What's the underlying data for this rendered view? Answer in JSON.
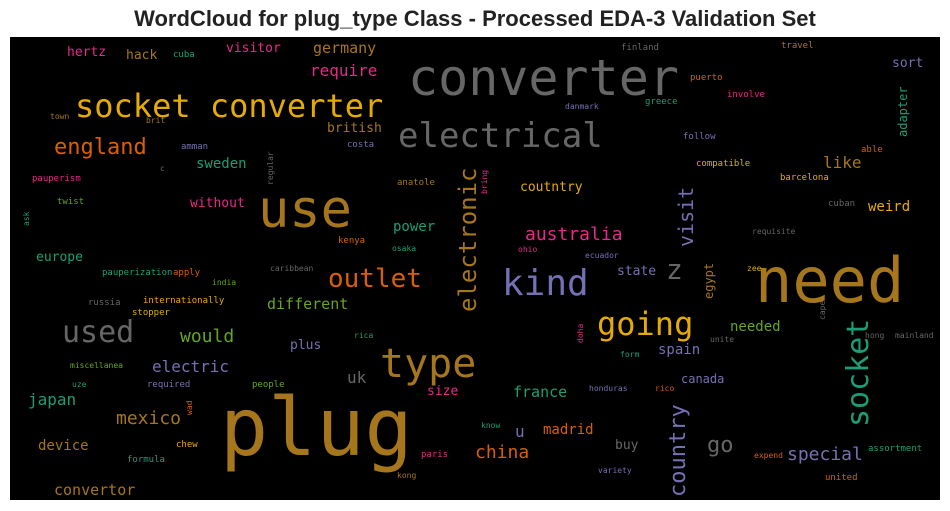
{
  "chart_data": {
    "type": "wordcloud",
    "title": "WordCloud for plug_type Class - Processed EDA-3 Validation Set",
    "background": "#000000",
    "words": [
      {
        "text": "plug",
        "color": "#a6761d"
      },
      {
        "text": "need",
        "color": "#a6761d"
      },
      {
        "text": "converter",
        "color": "#666666"
      },
      {
        "text": "use",
        "color": "#a6761d"
      },
      {
        "text": "socket converter",
        "color": "#e6ab02"
      },
      {
        "text": "electrical",
        "color": "#666666"
      },
      {
        "text": "type",
        "color": "#a6761d"
      },
      {
        "text": "kind",
        "color": "#7570b3"
      },
      {
        "text": "going",
        "color": "#e6ab02"
      },
      {
        "text": "socket",
        "color": "#1b9e77"
      },
      {
        "text": "used",
        "color": "#666666"
      },
      {
        "text": "outlet",
        "color": "#d95f02"
      },
      {
        "text": "electronic",
        "color": "#a6761d"
      },
      {
        "text": "country",
        "color": "#7570b3"
      },
      {
        "text": "england",
        "color": "#d95f02"
      },
      {
        "text": "z",
        "color": "#666666"
      },
      {
        "text": "visit",
        "color": "#7570b3"
      },
      {
        "text": "go",
        "color": "#666666"
      },
      {
        "text": "would",
        "color": "#66a61e"
      },
      {
        "text": "australia",
        "color": "#e7298a"
      },
      {
        "text": "mexico",
        "color": "#a6761d"
      },
      {
        "text": "china",
        "color": "#d95f02"
      },
      {
        "text": "special",
        "color": "#7570b3"
      },
      {
        "text": "require",
        "color": "#e7298a"
      },
      {
        "text": "germany",
        "color": "#a6761d"
      },
      {
        "text": "different",
        "color": "#66a61e"
      },
      {
        "text": "like",
        "color": "#a6761d"
      },
      {
        "text": "electric",
        "color": "#7570b3"
      },
      {
        "text": "uk",
        "color": "#666666"
      },
      {
        "text": "france",
        "color": "#1b9e77"
      },
      {
        "text": "japan",
        "color": "#1b9e77"
      },
      {
        "text": "convertor",
        "color": "#a6761d"
      },
      {
        "text": "needed",
        "color": "#66a61e"
      },
      {
        "text": "spain",
        "color": "#7570b3"
      },
      {
        "text": "madrid",
        "color": "#d95f02"
      },
      {
        "text": "sweden",
        "color": "#1b9e77"
      },
      {
        "text": "weird",
        "color": "#e6ab02"
      },
      {
        "text": "device",
        "color": "#a6761d"
      },
      {
        "text": "europe",
        "color": "#1b9e77"
      },
      {
        "text": "power",
        "color": "#1b9e77"
      },
      {
        "text": "hertz",
        "color": "#e7298a"
      },
      {
        "text": "hack",
        "color": "#a6761d"
      },
      {
        "text": "visitor",
        "color": "#e7298a"
      },
      {
        "text": "british",
        "color": "#a6761d"
      },
      {
        "text": "sort",
        "color": "#7570b3"
      },
      {
        "text": "adapter",
        "color": "#1b9e77"
      },
      {
        "text": "without",
        "color": "#e7298a"
      },
      {
        "text": "coutntry",
        "color": "#e6ab02"
      },
      {
        "text": "state",
        "color": "#7570b3"
      },
      {
        "text": "egypt",
        "color": "#a6761d"
      },
      {
        "text": "canada",
        "color": "#7570b3"
      },
      {
        "text": "plus",
        "color": "#7570b3"
      },
      {
        "text": "size",
        "color": "#e7298a"
      },
      {
        "text": "u",
        "color": "#7570b3"
      },
      {
        "text": "buy",
        "color": "#666666"
      },
      {
        "text": "cuba",
        "color": "#1b9e77"
      },
      {
        "text": "finland",
        "color": "#666666"
      },
      {
        "text": "travel",
        "color": "#a6761d"
      },
      {
        "text": "puerto",
        "color": "#d95f02"
      },
      {
        "text": "involve",
        "color": "#e7298a"
      },
      {
        "text": "greece",
        "color": "#1b9e77"
      },
      {
        "text": "danmark",
        "color": "#7570b3"
      },
      {
        "text": "town",
        "color": "#a6761d"
      },
      {
        "text": "brit",
        "color": "#a6761d"
      },
      {
        "text": "amman",
        "color": "#7570b3"
      },
      {
        "text": "costa",
        "color": "#7570b3"
      },
      {
        "text": "follow",
        "color": "#7570b3"
      },
      {
        "text": "able",
        "color": "#d95f02"
      },
      {
        "text": "compatible",
        "color": "#e6ab02"
      },
      {
        "text": "barcelona",
        "color": "#e6ab02"
      },
      {
        "text": "pauperism",
        "color": "#e7298a"
      },
      {
        "text": "c",
        "color": "#666666"
      },
      {
        "text": "regular",
        "color": "#666666"
      },
      {
        "text": "bring",
        "color": "#e7298a"
      },
      {
        "text": "anatole",
        "color": "#a6761d"
      },
      {
        "text": "twist",
        "color": "#66a61e"
      },
      {
        "text": "ask",
        "color": "#1b9e77"
      },
      {
        "text": "cuban",
        "color": "#666666"
      },
      {
        "text": "requisite",
        "color": "#666666"
      },
      {
        "text": "kenya",
        "color": "#d95f02"
      },
      {
        "text": "osaka",
        "color": "#1b9e77"
      },
      {
        "text": "ohio",
        "color": "#e7298a"
      },
      {
        "text": "ecuador",
        "color": "#7570b3"
      },
      {
        "text": "caribbean",
        "color": "#666666"
      },
      {
        "text": "zee",
        "color": "#e6ab02"
      },
      {
        "text": "pauperization",
        "color": "#1b9e77"
      },
      {
        "text": "apply",
        "color": "#d95f02"
      },
      {
        "text": "india",
        "color": "#66a61e"
      },
      {
        "text": "russia",
        "color": "#666666"
      },
      {
        "text": "internationally",
        "color": "#e6ab02"
      },
      {
        "text": "stopper",
        "color": "#e6ab02"
      },
      {
        "text": "rica",
        "color": "#1b9e77"
      },
      {
        "text": "doha",
        "color": "#e7298a"
      },
      {
        "text": "form",
        "color": "#1b9e77"
      },
      {
        "text": "unite",
        "color": "#666666"
      },
      {
        "text": "cape",
        "color": "#666666"
      },
      {
        "text": "hong",
        "color": "#666666"
      },
      {
        "text": "mainland",
        "color": "#666666"
      },
      {
        "text": "miscellanea",
        "color": "#66a61e"
      },
      {
        "text": "uze",
        "color": "#1b9e77"
      },
      {
        "text": "required",
        "color": "#7570b3"
      },
      {
        "text": "people",
        "color": "#66a61e"
      },
      {
        "text": "honduras",
        "color": "#7570b3"
      },
      {
        "text": "rico",
        "color": "#d95f02"
      },
      {
        "text": "wad",
        "color": "#d95f02"
      },
      {
        "text": "chew",
        "color": "#e6ab02"
      },
      {
        "text": "know",
        "color": "#1b9e77"
      },
      {
        "text": "expend",
        "color": "#d95f02"
      },
      {
        "text": "assortment",
        "color": "#1b9e77"
      },
      {
        "text": "formula",
        "color": "#1b9e77"
      },
      {
        "text": "paris",
        "color": "#e7298a"
      },
      {
        "text": "variety",
        "color": "#7570b3"
      },
      {
        "text": "kong",
        "color": "#a6761d"
      },
      {
        "text": "united",
        "color": "#d95f02"
      }
    ]
  }
}
